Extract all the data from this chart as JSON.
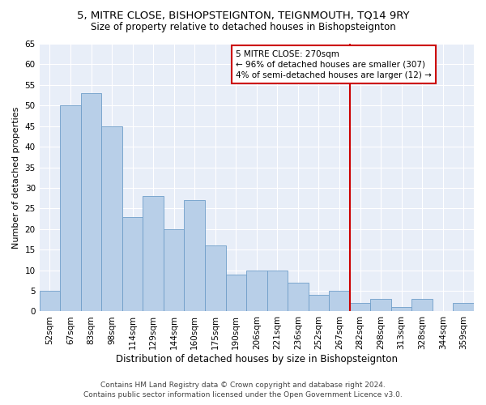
{
  "title": "5, MITRE CLOSE, BISHOPSTEIGNTON, TEIGNMOUTH, TQ14 9RY",
  "subtitle": "Size of property relative to detached houses in Bishopsteignton",
  "xlabel": "Distribution of detached houses by size in Bishopsteignton",
  "ylabel": "Number of detached properties",
  "bar_labels": [
    "52sqm",
    "67sqm",
    "83sqm",
    "98sqm",
    "114sqm",
    "129sqm",
    "144sqm",
    "160sqm",
    "175sqm",
    "190sqm",
    "206sqm",
    "221sqm",
    "236sqm",
    "252sqm",
    "267sqm",
    "282sqm",
    "298sqm",
    "313sqm",
    "328sqm",
    "344sqm",
    "359sqm"
  ],
  "bar_values": [
    5,
    50,
    53,
    45,
    23,
    28,
    20,
    27,
    16,
    9,
    10,
    10,
    7,
    4,
    5,
    2,
    3,
    1,
    3,
    0,
    2
  ],
  "bar_color": "#b8cfe8",
  "bar_edge_color": "#6f9ec9",
  "background_color": "#e8eef8",
  "grid_color": "#ffffff",
  "annotation_text_line1": "5 MITRE CLOSE: 270sqm",
  "annotation_text_line2": "← 96% of detached houses are smaller (307)",
  "annotation_text_line3": "4% of semi-detached houses are larger (12) →",
  "vline_color": "#cc0000",
  "vline_x_index": 14.5,
  "ylim": [
    0,
    65
  ],
  "yticks": [
    0,
    5,
    10,
    15,
    20,
    25,
    30,
    35,
    40,
    45,
    50,
    55,
    60,
    65
  ],
  "title_fontsize": 9.5,
  "subtitle_fontsize": 8.5,
  "xlabel_fontsize": 8.5,
  "ylabel_fontsize": 8.0,
  "tick_fontsize": 7.5,
  "annotation_fontsize": 7.5,
  "footer_fontsize": 6.5,
  "footer_line1": "Contains HM Land Registry data © Crown copyright and database right 2024.",
  "footer_line2": "Contains public sector information licensed under the Open Government Licence v3.0."
}
